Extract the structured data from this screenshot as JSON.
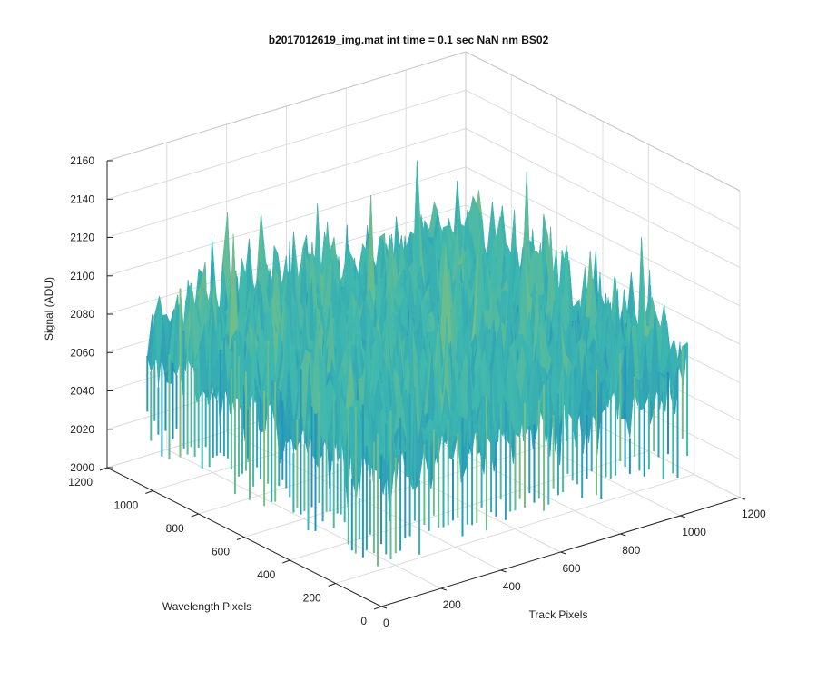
{
  "chart_data": {
    "type": "surface",
    "title": "b2017012619_img.mat int time = 0.1 sec  NaN nm BS02",
    "xlabel": "Track Pixels",
    "ylabel": "Wavelength Pixels",
    "zlabel": "Signal (ADU)",
    "x_ticks": [
      "0",
      "200",
      "400",
      "600",
      "800",
      "1000",
      "1200"
    ],
    "y_ticks": [
      "0",
      "200",
      "400",
      "600",
      "800",
      "1000",
      "1200"
    ],
    "z_ticks": [
      "2000",
      "2020",
      "2040",
      "2060",
      "2080",
      "2100",
      "2120",
      "2140",
      "2160"
    ],
    "xlim": [
      0,
      1200
    ],
    "ylim": [
      0,
      1200
    ],
    "zlim": [
      2000,
      2160
    ],
    "data_extent": {
      "x": [
        0,
        1024
      ],
      "y": [
        0,
        1024
      ]
    },
    "signal_mean": 2080,
    "signal_range": [
      2030,
      2145
    ],
    "grid": true,
    "colormap": "parula",
    "colors": {
      "low": "#0d73c4",
      "mid": "#3fb8af",
      "high": "#e8c930",
      "grid": "#dcdcdc",
      "axis": "#262626"
    }
  }
}
